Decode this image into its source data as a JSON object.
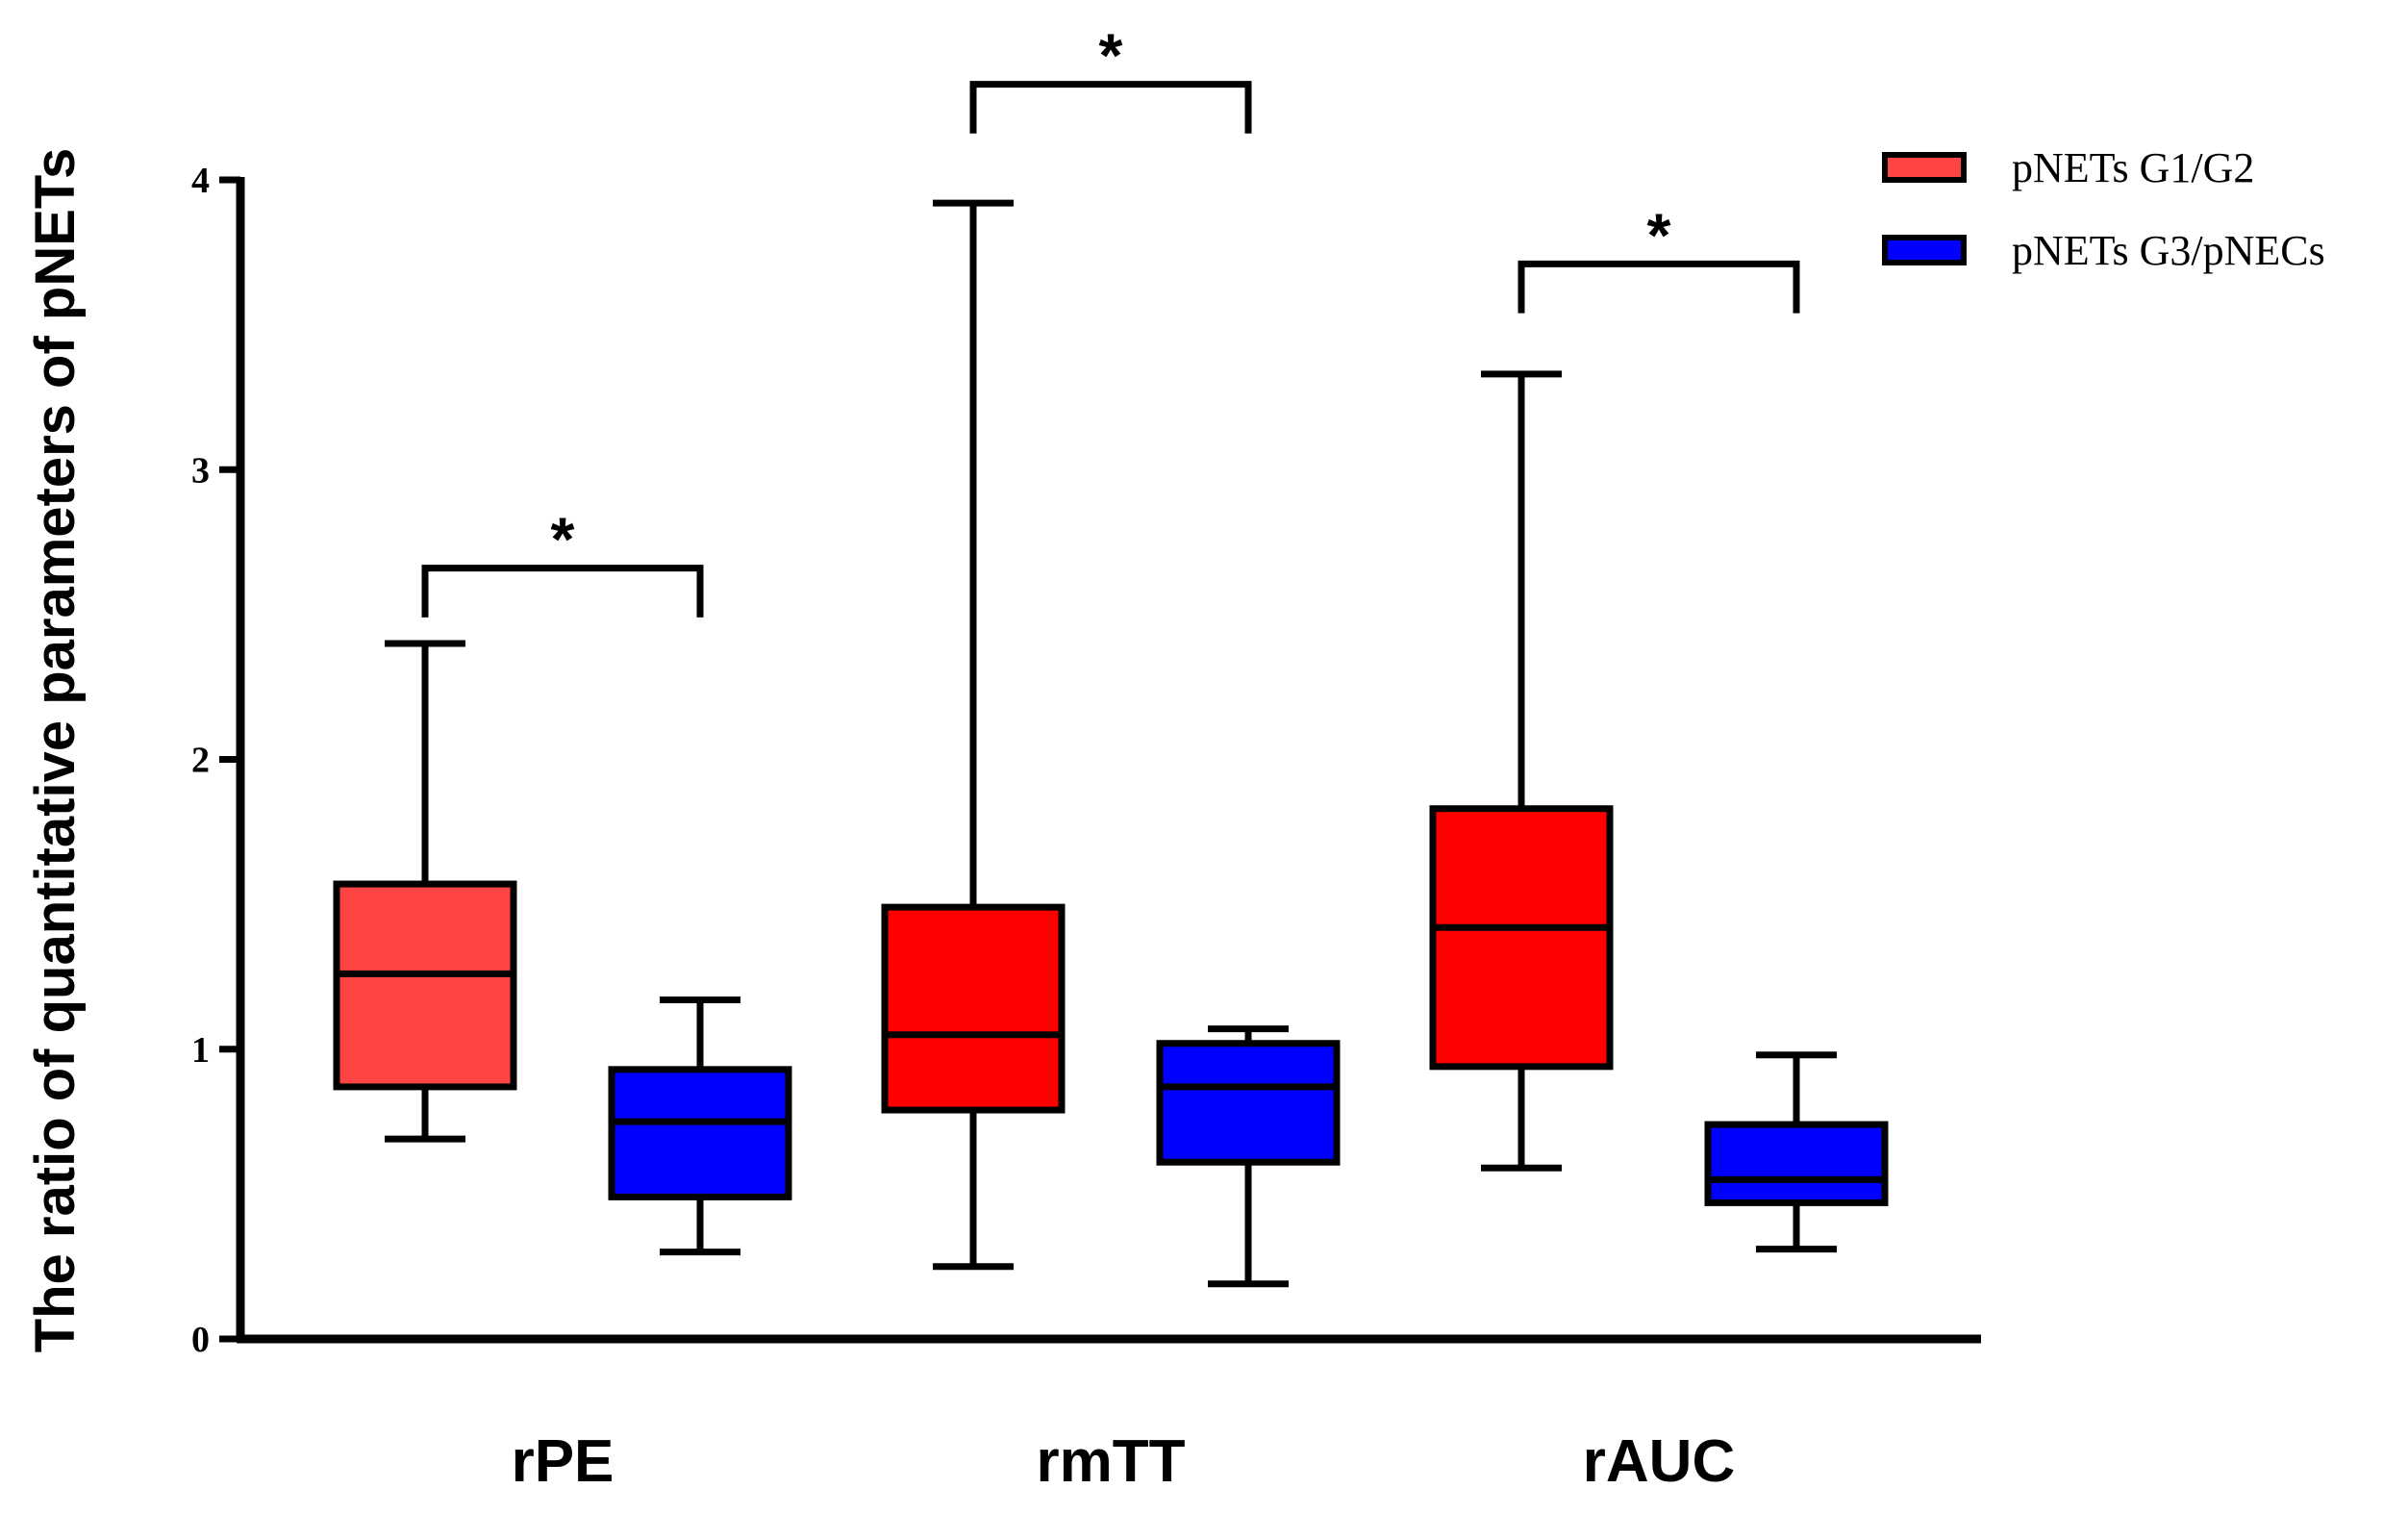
{
  "chart_data": {
    "type": "box",
    "title": "",
    "xlabel": "",
    "ylabel": "The ratio of quantitative parameters of pNETs",
    "ylim": [
      0,
      4
    ],
    "yticks": [
      0,
      1,
      2,
      3,
      4
    ],
    "ytick_labels": [
      "0",
      "1",
      "2",
      "3",
      "4"
    ],
    "categories": [
      "rPE",
      "rmTT",
      "rAUC"
    ],
    "legend_position": "top-right",
    "series": [
      {
        "name": "pNETs G1/G2",
        "color": "#ff0000",
        "fill_colors": [
          "#ff4444",
          "#ff0000",
          "#ff0000"
        ],
        "boxes": [
          {
            "min": 0.69,
            "q1": 0.87,
            "median": 1.26,
            "q3": 1.57,
            "max": 2.4
          },
          {
            "min": 0.25,
            "q1": 0.79,
            "median": 1.05,
            "q3": 1.49,
            "max": 3.92
          },
          {
            "min": 0.59,
            "q1": 0.94,
            "median": 1.42,
            "q3": 1.83,
            "max": 3.33
          }
        ]
      },
      {
        "name": "pNETs G3/pNECs",
        "color": "#0000ff",
        "fill_colors": [
          "#0000ff",
          "#0000ff",
          "#0000ff"
        ],
        "boxes": [
          {
            "min": 0.3,
            "q1": 0.49,
            "median": 0.75,
            "q3": 0.93,
            "max": 1.17
          },
          {
            "min": 0.19,
            "q1": 0.61,
            "median": 0.87,
            "q3": 1.02,
            "max": 1.07
          },
          {
            "min": 0.31,
            "q1": 0.47,
            "median": 0.55,
            "q3": 0.74,
            "max": 0.98
          }
        ]
      }
    ],
    "annotations": [
      {
        "category": "rPE",
        "text": "*",
        "bracket_y": 2.66,
        "drop_to": [
          2.49,
          2.49
        ]
      },
      {
        "category": "rmTT",
        "text": "*",
        "bracket_y": 4.33,
        "drop_to": [
          4.16,
          4.16
        ]
      },
      {
        "category": "rAUC",
        "text": "*",
        "bracket_y": 3.71,
        "drop_to": [
          3.54,
          3.54
        ]
      }
    ]
  }
}
